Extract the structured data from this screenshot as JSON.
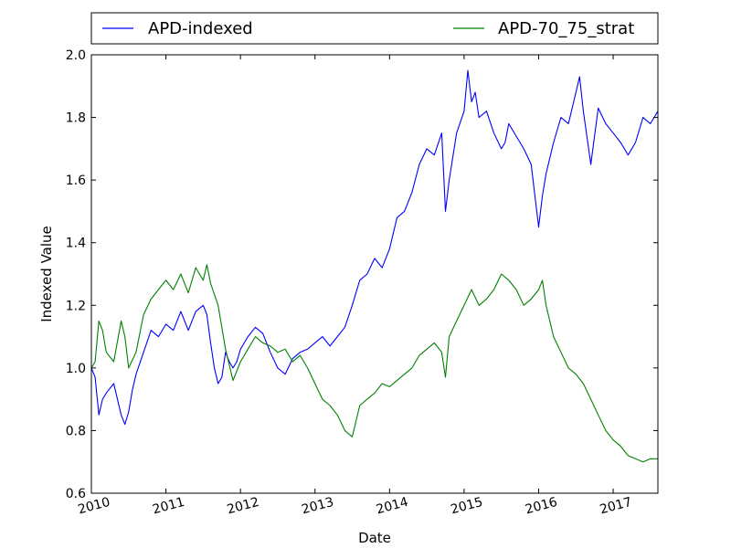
{
  "chart_data": {
    "type": "line",
    "title": "",
    "xlabel": "Date",
    "ylabel": "Indexed Value",
    "xlim": [
      2010.0,
      2017.6
    ],
    "ylim": [
      0.6,
      2.0
    ],
    "x_ticks": [
      "2010",
      "2011",
      "2012",
      "2013",
      "2014",
      "2015",
      "2016",
      "2017"
    ],
    "y_ticks": [
      "0.6",
      "0.8",
      "1.0",
      "1.2",
      "1.4",
      "1.6",
      "1.8",
      "2.0"
    ],
    "grid": false,
    "legend_position": "top (outside plot, two columns)",
    "series": [
      {
        "name": "APD-indexed",
        "color": "#0000ff",
        "x": [
          2010.0,
          2010.05,
          2010.1,
          2010.15,
          2010.2,
          2010.3,
          2010.4,
          2010.45,
          2010.5,
          2010.55,
          2010.6,
          2010.7,
          2010.8,
          2010.9,
          2011.0,
          2011.1,
          2011.2,
          2011.3,
          2011.4,
          2011.5,
          2011.55,
          2011.6,
          2011.65,
          2011.7,
          2011.75,
          2011.8,
          2011.85,
          2011.9,
          2011.95,
          2012.0,
          2012.1,
          2012.2,
          2012.3,
          2012.4,
          2012.5,
          2012.6,
          2012.7,
          2012.8,
          2012.9,
          2013.0,
          2013.1,
          2013.2,
          2013.3,
          2013.4,
          2013.5,
          2013.6,
          2013.7,
          2013.8,
          2013.9,
          2014.0,
          2014.1,
          2014.2,
          2014.3,
          2014.4,
          2014.5,
          2014.6,
          2014.7,
          2014.75,
          2014.8,
          2014.9,
          2015.0,
          2015.05,
          2015.1,
          2015.15,
          2015.2,
          2015.3,
          2015.4,
          2015.5,
          2015.55,
          2015.6,
          2015.7,
          2015.8,
          2015.9,
          2016.0,
          2016.05,
          2016.1,
          2016.2,
          2016.3,
          2016.4,
          2016.5,
          2016.55,
          2016.6,
          2016.7,
          2016.8,
          2016.9,
          2017.0,
          2017.1,
          2017.2,
          2017.3,
          2017.4,
          2017.5,
          2017.6
        ],
        "values": [
          1.0,
          0.97,
          0.85,
          0.9,
          0.92,
          0.95,
          0.85,
          0.82,
          0.86,
          0.93,
          0.98,
          1.05,
          1.12,
          1.1,
          1.14,
          1.12,
          1.18,
          1.12,
          1.18,
          1.2,
          1.17,
          1.08,
          1.0,
          0.95,
          0.97,
          1.05,
          1.02,
          1.0,
          1.02,
          1.06,
          1.1,
          1.13,
          1.11,
          1.05,
          1.0,
          0.98,
          1.03,
          1.05,
          1.06,
          1.08,
          1.1,
          1.07,
          1.1,
          1.13,
          1.2,
          1.28,
          1.3,
          1.35,
          1.32,
          1.38,
          1.48,
          1.5,
          1.56,
          1.65,
          1.7,
          1.68,
          1.75,
          1.5,
          1.6,
          1.75,
          1.82,
          1.95,
          1.85,
          1.88,
          1.8,
          1.82,
          1.75,
          1.7,
          1.72,
          1.78,
          1.74,
          1.7,
          1.65,
          1.45,
          1.55,
          1.62,
          1.72,
          1.8,
          1.78,
          1.88,
          1.93,
          1.82,
          1.65,
          1.83,
          1.78,
          1.75,
          1.72,
          1.68,
          1.72,
          1.8,
          1.78,
          1.82
        ]
      },
      {
        "name": "APD-70_75_strat",
        "color": "#008000",
        "x": [
          2010.0,
          2010.05,
          2010.1,
          2010.15,
          2010.2,
          2010.3,
          2010.4,
          2010.45,
          2010.5,
          2010.6,
          2010.7,
          2010.8,
          2010.9,
          2011.0,
          2011.1,
          2011.2,
          2011.3,
          2011.4,
          2011.5,
          2011.55,
          2011.6,
          2011.7,
          2011.8,
          2011.9,
          2012.0,
          2012.1,
          2012.2,
          2012.3,
          2012.4,
          2012.5,
          2012.6,
          2012.7,
          2012.8,
          2012.9,
          2013.0,
          2013.1,
          2013.2,
          2013.3,
          2013.4,
          2013.5,
          2013.6,
          2013.7,
          2013.8,
          2013.9,
          2014.0,
          2014.1,
          2014.2,
          2014.3,
          2014.4,
          2014.5,
          2014.6,
          2014.7,
          2014.75,
          2014.8,
          2014.9,
          2015.0,
          2015.1,
          2015.2,
          2015.3,
          2015.4,
          2015.5,
          2015.6,
          2015.7,
          2015.8,
          2015.9,
          2016.0,
          2016.05,
          2016.1,
          2016.2,
          2016.3,
          2016.4,
          2016.5,
          2016.6,
          2016.7,
          2016.8,
          2016.9,
          2017.0,
          2017.1,
          2017.2,
          2017.3,
          2017.4,
          2017.5,
          2017.6
        ],
        "values": [
          1.0,
          1.02,
          1.15,
          1.12,
          1.05,
          1.02,
          1.15,
          1.1,
          1.0,
          1.05,
          1.17,
          1.22,
          1.25,
          1.28,
          1.25,
          1.3,
          1.24,
          1.32,
          1.28,
          1.33,
          1.27,
          1.2,
          1.06,
          0.96,
          1.02,
          1.06,
          1.1,
          1.08,
          1.07,
          1.05,
          1.06,
          1.02,
          1.04,
          1.0,
          0.95,
          0.9,
          0.88,
          0.85,
          0.8,
          0.78,
          0.88,
          0.9,
          0.92,
          0.95,
          0.94,
          0.96,
          0.98,
          1.0,
          1.04,
          1.06,
          1.08,
          1.05,
          0.97,
          1.1,
          1.15,
          1.2,
          1.25,
          1.2,
          1.22,
          1.25,
          1.3,
          1.28,
          1.25,
          1.2,
          1.22,
          1.25,
          1.28,
          1.2,
          1.1,
          1.05,
          1.0,
          0.98,
          0.95,
          0.9,
          0.85,
          0.8,
          0.77,
          0.75,
          0.72,
          0.71,
          0.7,
          0.71,
          0.71
        ]
      }
    ]
  }
}
